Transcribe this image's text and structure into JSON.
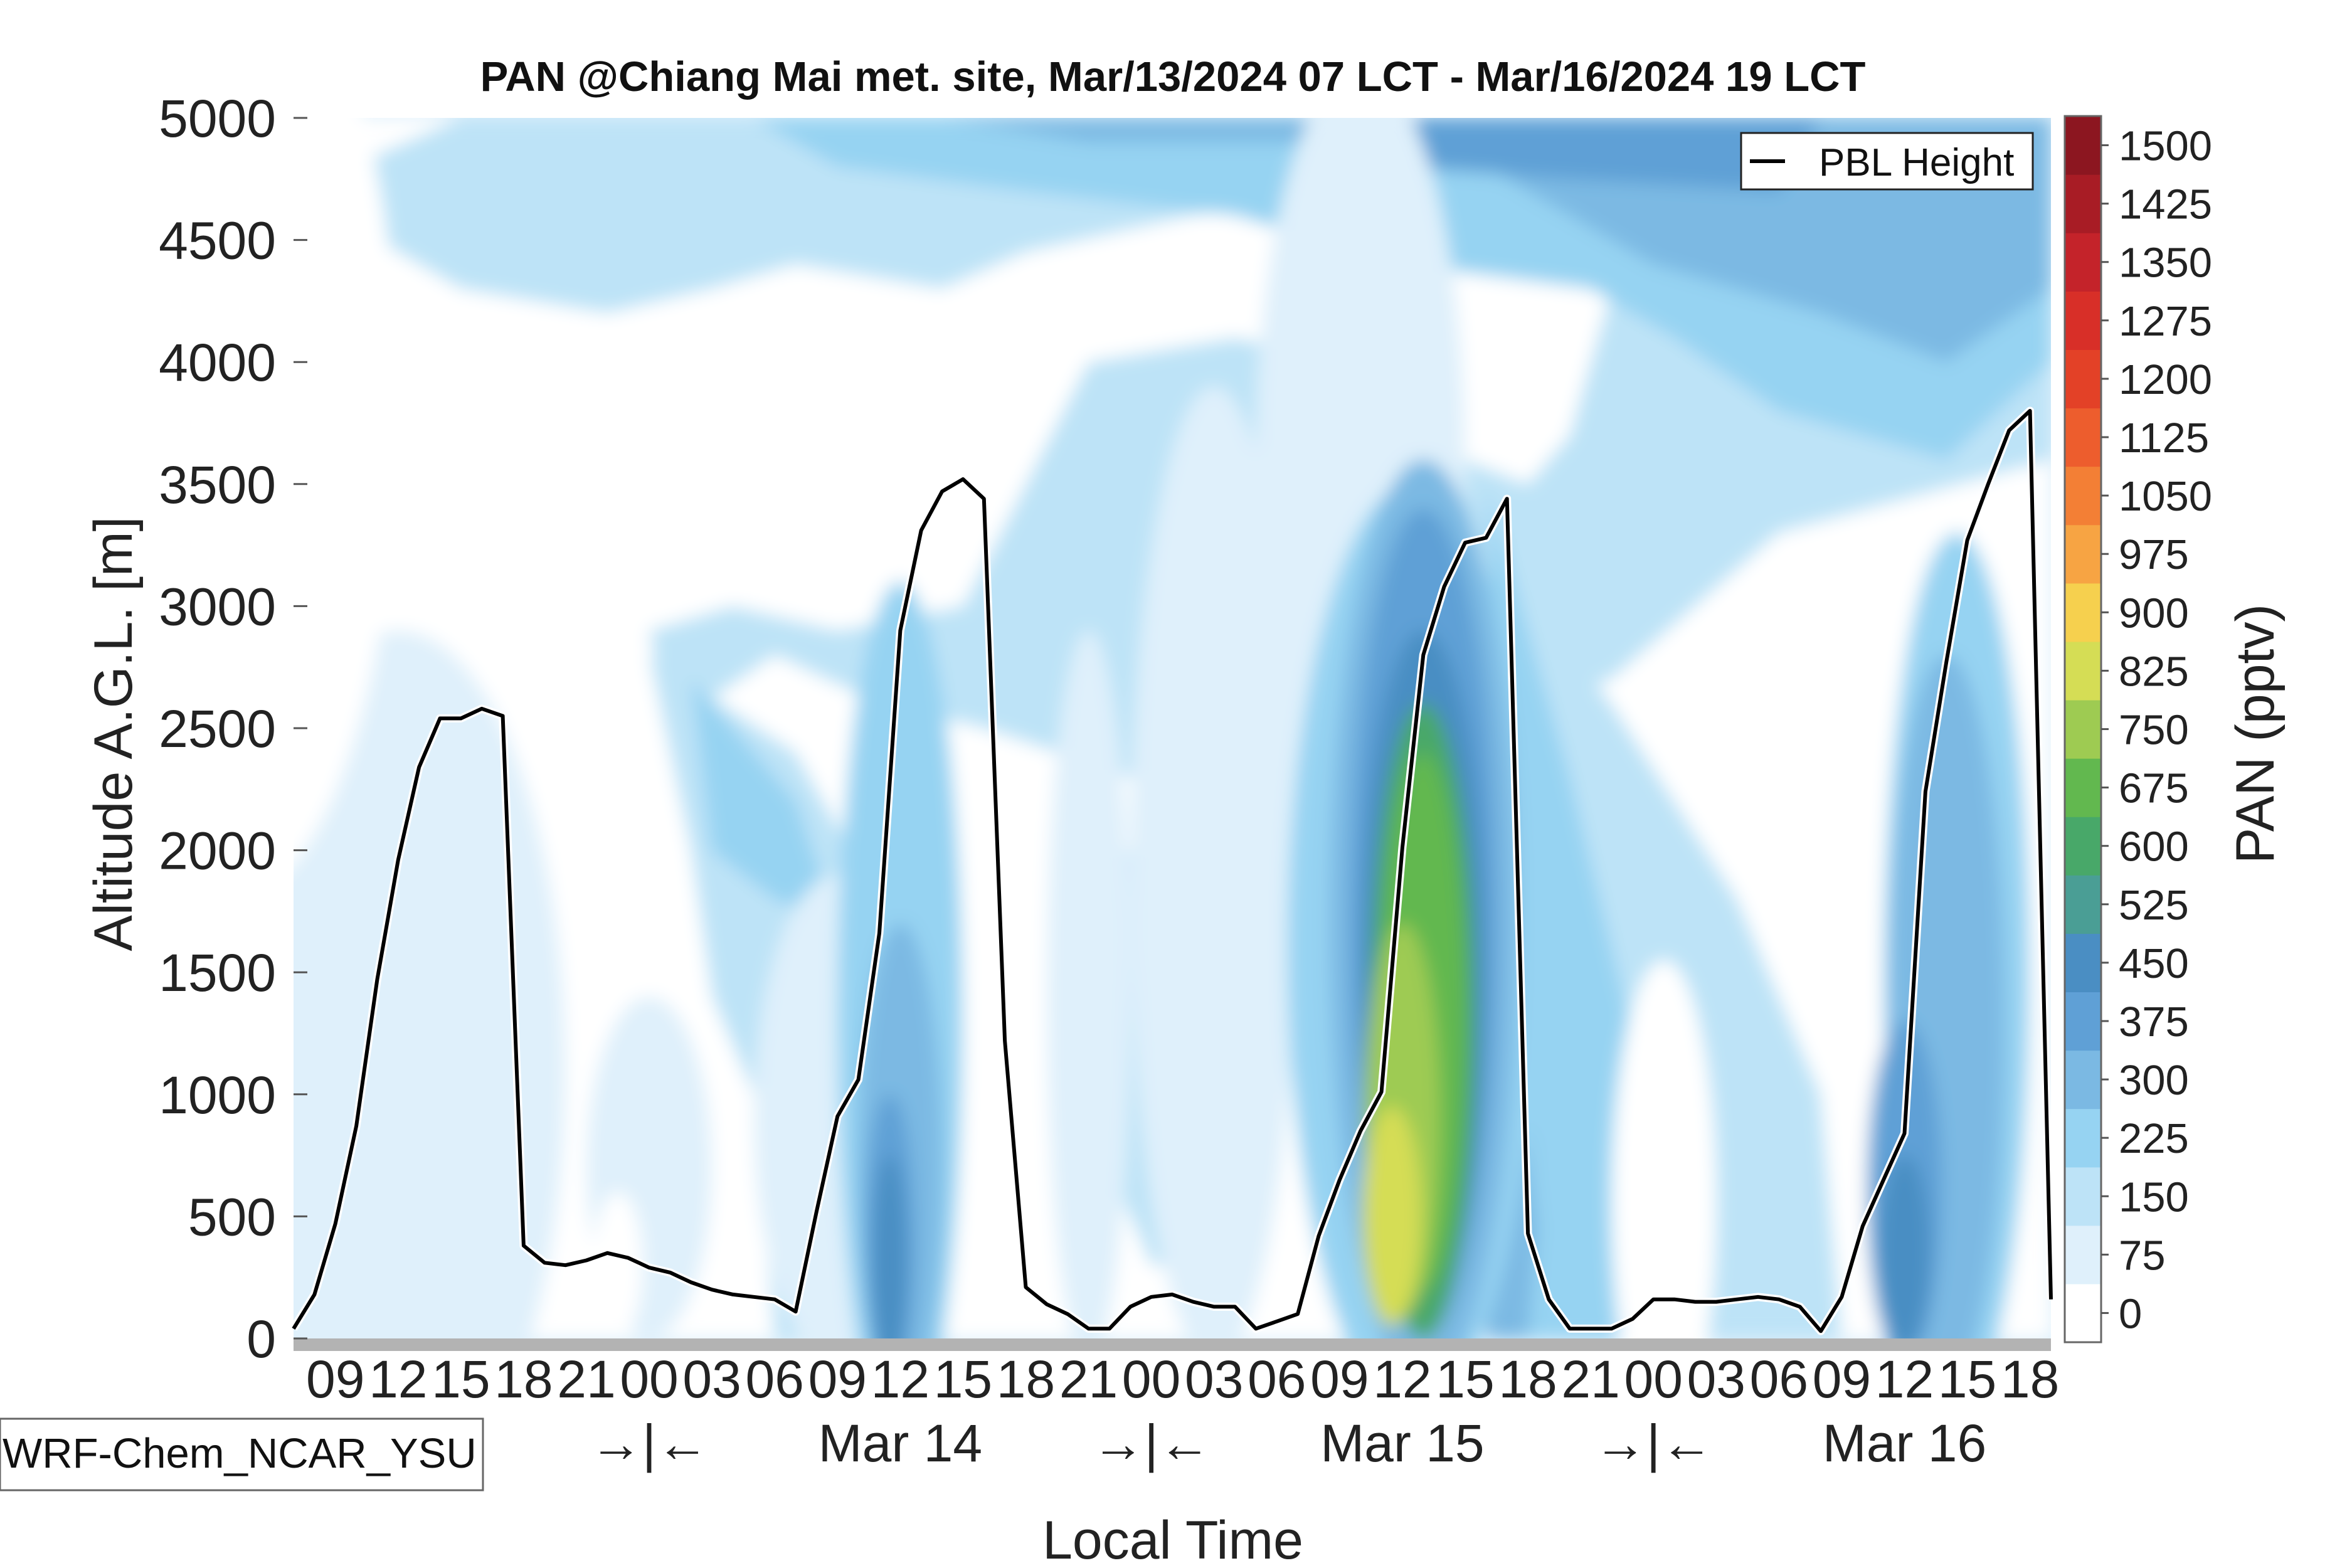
{
  "chart_data": {
    "type": "heatmap",
    "title": "PAN @Chiang Mai met. site, Mar/13/2024 07 LCT - Mar/16/2024 19 LCT",
    "xlabel": "Local Time",
    "ylabel": "Altitude A.G.L. [m]",
    "x_unit": "hours since Mar/13/2024 00 LCT",
    "xlim": [
      7,
      91
    ],
    "ylim": [
      0,
      5000
    ],
    "y_ticks": [
      0,
      500,
      1000,
      1500,
      2000,
      2500,
      3000,
      3500,
      4000,
      4500,
      5000
    ],
    "hour_ticks": [
      {
        "h": 9,
        "label": "09"
      },
      {
        "h": 12,
        "label": "12"
      },
      {
        "h": 15,
        "label": "15"
      },
      {
        "h": 18,
        "label": "18"
      },
      {
        "h": 21,
        "label": "21"
      },
      {
        "h": 24,
        "label": "00"
      },
      {
        "h": 27,
        "label": "03"
      },
      {
        "h": 30,
        "label": "06"
      },
      {
        "h": 33,
        "label": "09"
      },
      {
        "h": 36,
        "label": "12"
      },
      {
        "h": 39,
        "label": "15"
      },
      {
        "h": 42,
        "label": "18"
      },
      {
        "h": 45,
        "label": "21"
      },
      {
        "h": 48,
        "label": "00"
      },
      {
        "h": 51,
        "label": "03"
      },
      {
        "h": 54,
        "label": "06"
      },
      {
        "h": 57,
        "label": "09"
      },
      {
        "h": 60,
        "label": "12"
      },
      {
        "h": 63,
        "label": "15"
      },
      {
        "h": 66,
        "label": "18"
      },
      {
        "h": 69,
        "label": "21"
      },
      {
        "h": 72,
        "label": "00"
      },
      {
        "h": 75,
        "label": "03"
      },
      {
        "h": 78,
        "label": "06"
      },
      {
        "h": 81,
        "label": "09"
      },
      {
        "h": 84,
        "label": "12"
      },
      {
        "h": 87,
        "label": "15"
      },
      {
        "h": 90,
        "label": "18"
      }
    ],
    "midnight_markers": [
      {
        "h": 24,
        "label": "→|←"
      },
      {
        "h": 48,
        "label": "→|←"
      },
      {
        "h": 72,
        "label": "→|←"
      }
    ],
    "date_labels": [
      {
        "h": 36,
        "label": "Mar 14"
      },
      {
        "h": 60,
        "label": "Mar 15"
      },
      {
        "h": 84,
        "label": "Mar 16"
      }
    ],
    "colorbar": {
      "label": "PAN (pptv)",
      "levels": [
        0,
        75,
        150,
        225,
        300,
        375,
        450,
        525,
        600,
        675,
        750,
        825,
        900,
        975,
        1050,
        1125,
        1200,
        1275,
        1350,
        1425,
        1500
      ],
      "tick_labels": [
        "0",
        "75",
        "150",
        "225",
        "300",
        "375",
        "450",
        "525",
        "600",
        "675",
        "750",
        "825",
        "900",
        "975",
        "1050",
        "1125",
        "1200",
        "1275",
        "1350",
        "1425",
        "1500"
      ],
      "colors": [
        "#ffffff",
        "#dff0fb",
        "#bde3f7",
        "#96d3f2",
        "#7bb9e3",
        "#5fa0d6",
        "#4a8ec3",
        "#4a9e95",
        "#48a869",
        "#62b84f",
        "#9ecb52",
        "#d5dd55",
        "#f6d04e",
        "#f7a443",
        "#f37f35",
        "#ed5d2d",
        "#e34127",
        "#d82f28",
        "#c4232a",
        "#a81c25",
        "#8c1620"
      ]
    },
    "legend": {
      "entries": [
        "PBL Height"
      ],
      "position": "top-right"
    },
    "series": [
      {
        "name": "PBL Height",
        "x": [
          7,
          8,
          9,
          10,
          11,
          12,
          13,
          14,
          15,
          16,
          17,
          18,
          19,
          20,
          21,
          22,
          23,
          24,
          25,
          26,
          27,
          28,
          29,
          30,
          31,
          32,
          33,
          34,
          35,
          36,
          37,
          38,
          39,
          40,
          41,
          42,
          43,
          44,
          45,
          46,
          47,
          48,
          49,
          50,
          51,
          52,
          53,
          54,
          55,
          56,
          57,
          58,
          59,
          60,
          61,
          62,
          63,
          64,
          65,
          66,
          67,
          68,
          69,
          70,
          71,
          72,
          73,
          74,
          75,
          76,
          77,
          78,
          79,
          80,
          81,
          82,
          83,
          84,
          85,
          86,
          87,
          88,
          89,
          90,
          91
        ],
        "values": [
          40,
          180,
          470,
          870,
          1470,
          1960,
          2340,
          2540,
          2540,
          2580,
          2550,
          380,
          310,
          300,
          320,
          350,
          330,
          290,
          270,
          230,
          200,
          180,
          170,
          160,
          110,
          520,
          910,
          1060,
          1660,
          2900,
          3310,
          3470,
          3520,
          3440,
          1220,
          210,
          140,
          100,
          40,
          40,
          130,
          170,
          180,
          150,
          130,
          130,
          40,
          70,
          100,
          420,
          650,
          850,
          1010,
          2010,
          2800,
          3080,
          3260,
          3280,
          3440,
          430,
          160,
          40,
          40,
          40,
          80,
          160,
          160,
          150,
          150,
          160,
          170,
          160,
          130,
          30,
          170,
          460,
          650,
          840,
          2240,
          2770,
          3270,
          3500,
          3720,
          3800,
          160
        ]
      }
    ],
    "annotations": [
      "WRF-Chem_NCAR_YSU"
    ]
  }
}
